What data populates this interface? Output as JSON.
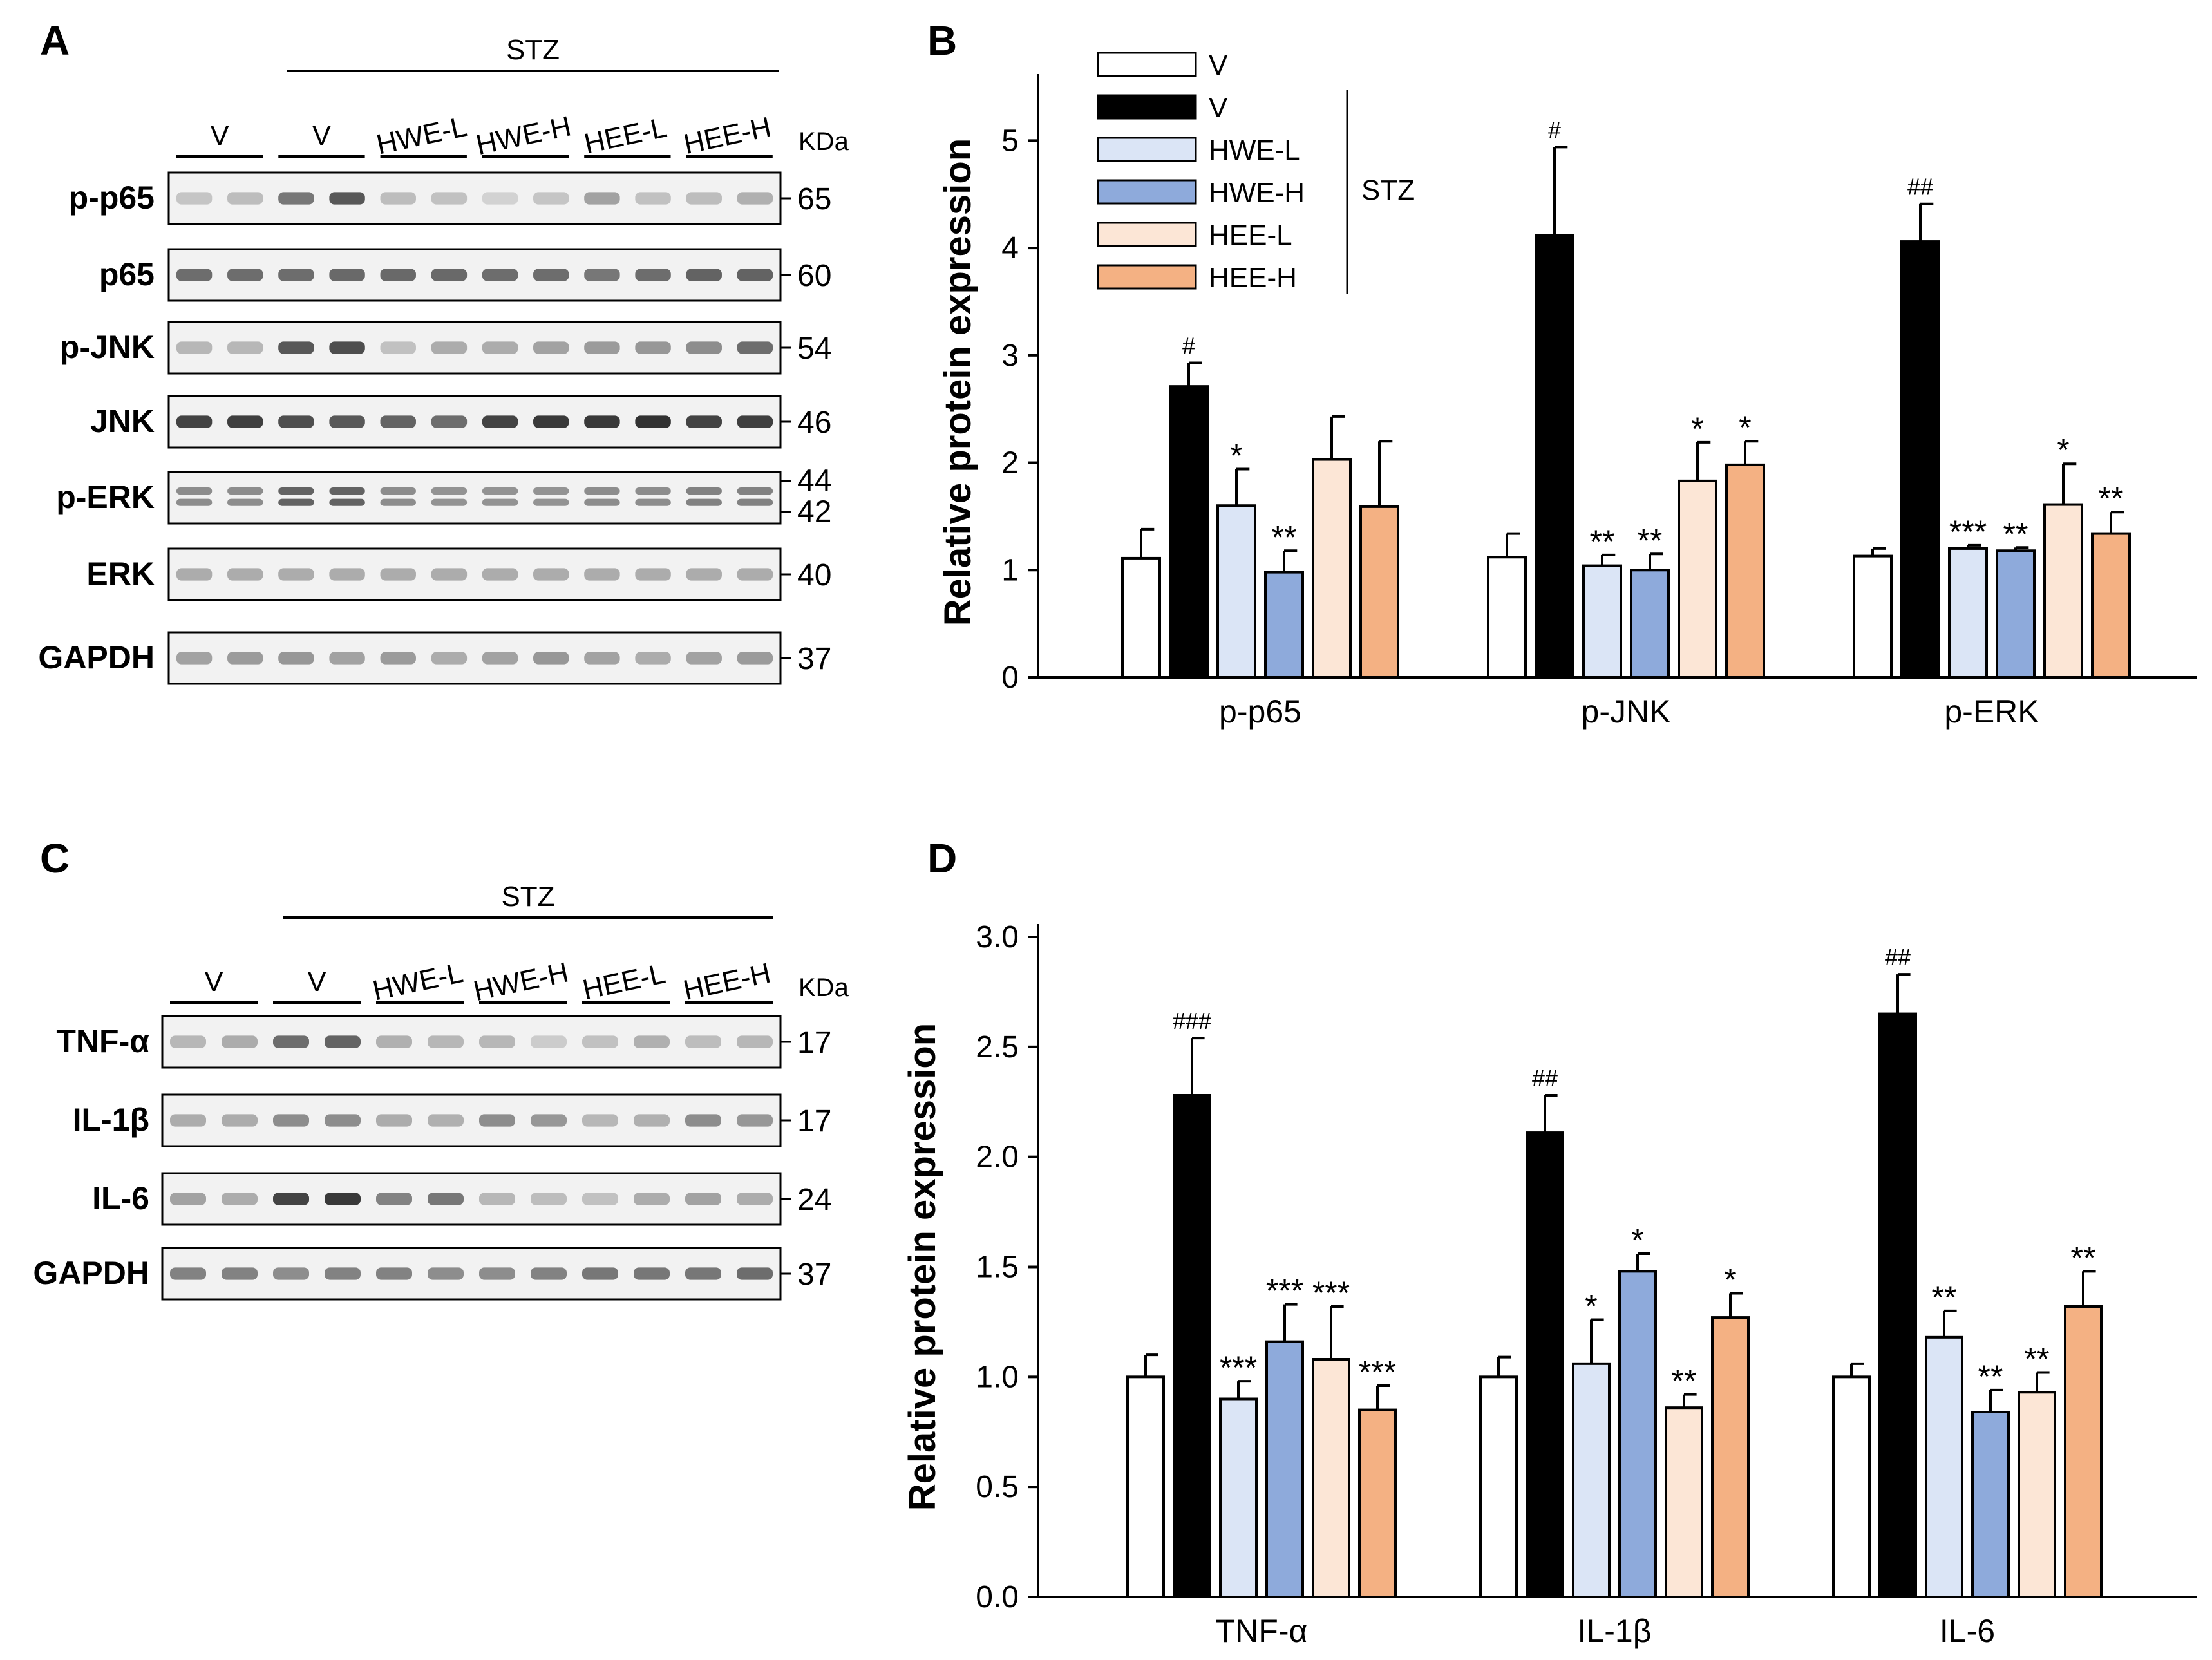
{
  "panels": {
    "A": {
      "letter": "A"
    },
    "B": {
      "letter": "B"
    },
    "C": {
      "letter": "C"
    },
    "D": {
      "letter": "D"
    }
  },
  "blot_top": {
    "stz_label": "STZ",
    "kda_label": "KDa",
    "groups": [
      "V",
      "V",
      "HWE-L",
      "HWE-H",
      "HEE-L",
      "HEE-H"
    ],
    "rows": [
      {
        "name": "p-p65",
        "kda": [
          "65"
        ],
        "intensity": [
          0.18,
          0.22,
          0.55,
          0.7,
          0.22,
          0.2,
          0.12,
          0.18,
          0.35,
          0.2,
          0.22,
          0.28
        ]
      },
      {
        "name": "p65",
        "kda": [
          "60"
        ],
        "intensity": [
          0.6,
          0.6,
          0.6,
          0.62,
          0.62,
          0.62,
          0.6,
          0.6,
          0.55,
          0.6,
          0.65,
          0.65
        ]
      },
      {
        "name": "p-JNK",
        "kda": [
          "54"
        ],
        "intensity": [
          0.25,
          0.25,
          0.7,
          0.75,
          0.2,
          0.3,
          0.3,
          0.35,
          0.38,
          0.4,
          0.45,
          0.6
        ]
      },
      {
        "name": "JNK",
        "kda": [
          "46"
        ],
        "intensity": [
          0.8,
          0.82,
          0.75,
          0.7,
          0.65,
          0.6,
          0.8,
          0.85,
          0.85,
          0.88,
          0.8,
          0.82
        ]
      },
      {
        "name": "p-ERK",
        "kda": [
          "44",
          "42"
        ],
        "intensity": [
          0.45,
          0.45,
          0.65,
          0.65,
          0.45,
          0.42,
          0.42,
          0.42,
          0.45,
          0.45,
          0.5,
          0.5
        ]
      },
      {
        "name": "ERK",
        "kda": [
          "40"
        ],
        "intensity": [
          0.3,
          0.3,
          0.3,
          0.3,
          0.3,
          0.3,
          0.3,
          0.3,
          0.3,
          0.3,
          0.3,
          0.3
        ]
      },
      {
        "name": "GAPDH",
        "kda": [
          "37"
        ],
        "intensity": [
          0.35,
          0.38,
          0.4,
          0.35,
          0.38,
          0.3,
          0.35,
          0.4,
          0.35,
          0.3,
          0.35,
          0.38
        ]
      }
    ]
  },
  "blot_bottom": {
    "stz_label": "STZ",
    "kda_label": "KDa",
    "groups": [
      "V",
      "V",
      "HWE-L",
      "HWE-H",
      "HEE-L",
      "HEE-H"
    ],
    "rows": [
      {
        "name": "TNF-α",
        "kda": [
          "17"
        ],
        "intensity": [
          0.25,
          0.3,
          0.6,
          0.65,
          0.28,
          0.25,
          0.25,
          0.15,
          0.2,
          0.28,
          0.22,
          0.25
        ]
      },
      {
        "name": "IL-1β",
        "kda": [
          "17"
        ],
        "intensity": [
          0.3,
          0.3,
          0.45,
          0.45,
          0.3,
          0.28,
          0.45,
          0.4,
          0.25,
          0.28,
          0.45,
          0.4
        ]
      },
      {
        "name": "IL-6",
        "kda": [
          "24"
        ],
        "intensity": [
          0.35,
          0.3,
          0.8,
          0.85,
          0.5,
          0.55,
          0.25,
          0.22,
          0.2,
          0.3,
          0.35,
          0.3
        ]
      },
      {
        "name": "GAPDH",
        "kda": [
          "37"
        ],
        "intensity": [
          0.5,
          0.5,
          0.45,
          0.5,
          0.5,
          0.45,
          0.45,
          0.5,
          0.55,
          0.55,
          0.55,
          0.6
        ]
      }
    ]
  },
  "legend": {
    "entries": [
      "V",
      "V",
      "HWE-L",
      "HWE-H",
      "HEE-L",
      "HEE-H"
    ],
    "bracket_label": "STZ"
  },
  "colors": {
    "V_control": "#ffffff",
    "V_STZ": "#000000",
    "HWE-L": "#dbe5f6",
    "HWE-H": "#8eaadb",
    "HEE-L": "#fce6d6",
    "HEE-H": "#f4b183"
  },
  "chart_data": [
    {
      "type": "bar",
      "panel": "B",
      "ylabel": "Relative protein expression",
      "ylim": [
        0,
        5.5
      ],
      "yticks": [
        "0",
        "1",
        "2",
        "3",
        "4",
        "5"
      ],
      "categories": [
        "p-p65",
        "p-JNK",
        "p-ERK"
      ],
      "series": [
        {
          "name": "V",
          "values": [
            1.11,
            1.12,
            1.13
          ],
          "errors": [
            0.27,
            0.22,
            0.07
          ],
          "marks": [
            "",
            "",
            ""
          ]
        },
        {
          "name": "V",
          "values": [
            2.71,
            4.12,
            4.06
          ],
          "errors": [
            0.22,
            0.82,
            0.35
          ],
          "marks": [
            "#",
            "#",
            "##"
          ]
        },
        {
          "name": "HWE-L",
          "values": [
            1.6,
            1.04,
            1.2
          ],
          "errors": [
            0.34,
            0.1,
            0.03
          ],
          "marks": [
            "*",
            "**",
            "***"
          ]
        },
        {
          "name": "HWE-H",
          "values": [
            0.98,
            1.0,
            1.18
          ],
          "errors": [
            0.2,
            0.15,
            0.03
          ],
          "marks": [
            "**",
            "**",
            "**"
          ]
        },
        {
          "name": "HEE-L",
          "values": [
            2.03,
            1.83,
            1.61
          ],
          "errors": [
            0.4,
            0.36,
            0.38
          ],
          "marks": [
            "",
            "*",
            "*"
          ]
        },
        {
          "name": "HEE-H",
          "values": [
            1.59,
            1.98,
            1.34
          ],
          "errors": [
            0.61,
            0.22,
            0.2
          ],
          "marks": [
            "",
            "*",
            "**"
          ]
        }
      ]
    },
    {
      "type": "bar",
      "panel": "D",
      "ylabel": "Relative protein expression",
      "ylim": [
        0,
        3.0
      ],
      "yticks": [
        "0.0",
        "0.5",
        "1.0",
        "1.5",
        "2.0",
        "2.5",
        "3.0"
      ],
      "categories": [
        "TNF-α",
        "IL-1β",
        "IL-6"
      ],
      "series": [
        {
          "name": "V",
          "values": [
            1.0,
            1.0,
            1.0
          ],
          "errors": [
            0.1,
            0.09,
            0.06
          ],
          "marks": [
            "",
            "",
            ""
          ]
        },
        {
          "name": "V",
          "values": [
            2.28,
            2.11,
            2.65
          ],
          "errors": [
            0.26,
            0.17,
            0.18
          ],
          "marks": [
            "###",
            "##",
            "##"
          ]
        },
        {
          "name": "HWE-L",
          "values": [
            0.9,
            1.06,
            1.18
          ],
          "errors": [
            0.08,
            0.2,
            0.12
          ],
          "marks": [
            "***",
            "*",
            "**"
          ]
        },
        {
          "name": "HWE-H",
          "values": [
            1.16,
            1.48,
            0.84
          ],
          "errors": [
            0.17,
            0.08,
            0.1
          ],
          "marks": [
            "***",
            "*",
            "**"
          ]
        },
        {
          "name": "HEE-L",
          "values": [
            1.08,
            0.86,
            0.93
          ],
          "errors": [
            0.24,
            0.06,
            0.09
          ],
          "marks": [
            "***",
            "**",
            "**"
          ]
        },
        {
          "name": "HEE-H",
          "values": [
            0.85,
            1.27,
            1.32
          ],
          "errors": [
            0.11,
            0.11,
            0.16
          ],
          "marks": [
            "***",
            "*",
            "**"
          ]
        }
      ]
    }
  ]
}
